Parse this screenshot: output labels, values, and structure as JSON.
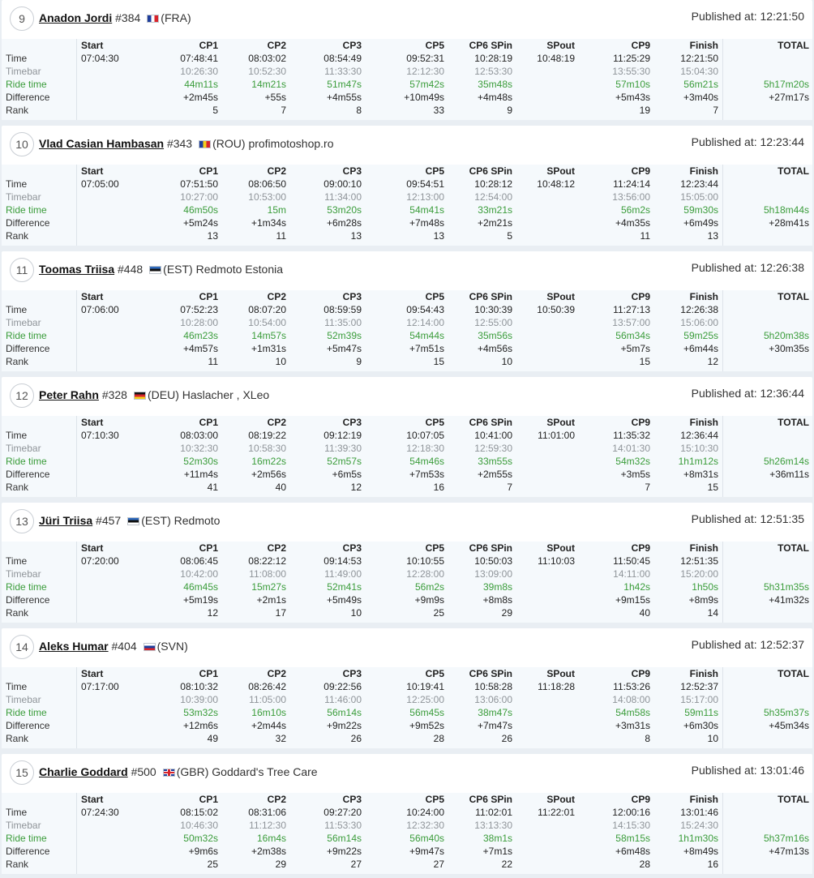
{
  "labels": {
    "published_prefix": "Published at: ",
    "row_time": "Time",
    "row_timebar": "Timebar",
    "row_ride": "Ride time",
    "row_diff": "Difference",
    "row_rank": "Rank"
  },
  "columns": [
    "Start",
    "CP1",
    "CP2",
    "CP3",
    "CP5",
    "CP6 SPin",
    "SPout",
    "CP9",
    "Finish",
    "TOTAL"
  ],
  "colors": {
    "ride_time": "#3a9c3a",
    "timebar": "#8f9499",
    "table_bg": "#f5f9fc",
    "page_bg": "#e9eef3"
  },
  "riders": [
    {
      "position": "9",
      "name": "Anadon Jordi",
      "number": "#384",
      "flag_icon": "flag-fra-icon",
      "flag": [
        "#1f3e9c",
        "#ffffff",
        "#d8242b"
      ],
      "flag_dir": "v",
      "country": "(FRA)",
      "team": "",
      "published": "12:21:50",
      "rows": {
        "time": [
          "07:04:30",
          "07:48:41",
          "08:03:02",
          "08:54:49",
          "09:52:31",
          "10:28:19",
          "10:48:19",
          "11:25:29",
          "12:21:50",
          ""
        ],
        "timebar": [
          "",
          "10:26:30",
          "10:52:30",
          "11:33:30",
          "12:12:30",
          "12:53:30",
          "",
          "13:55:30",
          "15:04:30",
          ""
        ],
        "ride": [
          "",
          "44m11s",
          "14m21s",
          "51m47s",
          "57m42s",
          "35m48s",
          "",
          "57m10s",
          "56m21s",
          "5h17m20s"
        ],
        "diff": [
          "",
          "+2m45s",
          "+55s",
          "+4m55s",
          "+10m49s",
          "+4m48s",
          "",
          "+5m43s",
          "+3m40s",
          "+27m17s"
        ],
        "rank": [
          "",
          "5",
          "7",
          "8",
          "33",
          "9",
          "",
          "19",
          "7",
          ""
        ]
      }
    },
    {
      "position": "10",
      "name": "Vlad Casian Hambasan",
      "number": "#343",
      "flag_icon": "flag-rou-icon",
      "flag": [
        "#1f3e9c",
        "#f4cf1c",
        "#d8242b"
      ],
      "flag_dir": "v",
      "country": "(ROU)",
      "team": "profimotoshop.ro",
      "published": "12:23:44",
      "rows": {
        "time": [
          "07:05:00",
          "07:51:50",
          "08:06:50",
          "09:00:10",
          "09:54:51",
          "10:28:12",
          "10:48:12",
          "11:24:14",
          "12:23:44",
          ""
        ],
        "timebar": [
          "",
          "10:27:00",
          "10:53:00",
          "11:34:00",
          "12:13:00",
          "12:54:00",
          "",
          "13:56:00",
          "15:05:00",
          ""
        ],
        "ride": [
          "",
          "46m50s",
          "15m",
          "53m20s",
          "54m41s",
          "33m21s",
          "",
          "56m2s",
          "59m30s",
          "5h18m44s"
        ],
        "diff": [
          "",
          "+5m24s",
          "+1m34s",
          "+6m28s",
          "+7m48s",
          "+2m21s",
          "",
          "+4m35s",
          "+6m49s",
          "+28m41s"
        ],
        "rank": [
          "",
          "13",
          "11",
          "13",
          "13",
          "5",
          "",
          "11",
          "13",
          ""
        ]
      }
    },
    {
      "position": "11",
      "name": "Toomas Triisa",
      "number": "#448",
      "flag_icon": "flag-est-icon",
      "flag": [
        "#2f6bbf",
        "#111111",
        "#ffffff"
      ],
      "flag_dir": "h",
      "country": "(EST)",
      "team": "Redmoto Estonia",
      "published": "12:26:38",
      "rows": {
        "time": [
          "07:06:00",
          "07:52:23",
          "08:07:20",
          "08:59:59",
          "09:54:43",
          "10:30:39",
          "10:50:39",
          "11:27:13",
          "12:26:38",
          ""
        ],
        "timebar": [
          "",
          "10:28:00",
          "10:54:00",
          "11:35:00",
          "12:14:00",
          "12:55:00",
          "",
          "13:57:00",
          "15:06:00",
          ""
        ],
        "ride": [
          "",
          "46m23s",
          "14m57s",
          "52m39s",
          "54m44s",
          "35m56s",
          "",
          "56m34s",
          "59m25s",
          "5h20m38s"
        ],
        "diff": [
          "",
          "+4m57s",
          "+1m31s",
          "+5m47s",
          "+7m51s",
          "+4m56s",
          "",
          "+5m7s",
          "+6m44s",
          "+30m35s"
        ],
        "rank": [
          "",
          "11",
          "10",
          "9",
          "15",
          "10",
          "",
          "15",
          "12",
          ""
        ]
      }
    },
    {
      "position": "12",
      "name": "Peter Rahn",
      "number": "#328",
      "flag_icon": "flag-deu-icon",
      "flag": [
        "#111111",
        "#d8242b",
        "#f4cf1c"
      ],
      "flag_dir": "h",
      "country": "(DEU)",
      "team": "Haslacher , XLeo",
      "published": "12:36:44",
      "rows": {
        "time": [
          "07:10:30",
          "08:03:00",
          "08:19:22",
          "09:12:19",
          "10:07:05",
          "10:41:00",
          "11:01:00",
          "11:35:32",
          "12:36:44",
          ""
        ],
        "timebar": [
          "",
          "10:32:30",
          "10:58:30",
          "11:39:30",
          "12:18:30",
          "12:59:30",
          "",
          "14:01:30",
          "15:10:30",
          ""
        ],
        "ride": [
          "",
          "52m30s",
          "16m22s",
          "52m57s",
          "54m46s",
          "33m55s",
          "",
          "54m32s",
          "1h1m12s",
          "5h26m14s"
        ],
        "diff": [
          "",
          "+11m4s",
          "+2m56s",
          "+6m5s",
          "+7m53s",
          "+2m55s",
          "",
          "+3m5s",
          "+8m31s",
          "+36m11s"
        ],
        "rank": [
          "",
          "41",
          "40",
          "12",
          "16",
          "7",
          "",
          "7",
          "15",
          ""
        ]
      }
    },
    {
      "position": "13",
      "name": "Jüri Triisa",
      "number": "#457",
      "flag_icon": "flag-est-icon",
      "flag": [
        "#2f6bbf",
        "#111111",
        "#ffffff"
      ],
      "flag_dir": "h",
      "country": "(EST)",
      "team": "Redmoto",
      "published": "12:51:35",
      "rows": {
        "time": [
          "07:20:00",
          "08:06:45",
          "08:22:12",
          "09:14:53",
          "10:10:55",
          "10:50:03",
          "11:10:03",
          "11:50:45",
          "12:51:35",
          ""
        ],
        "timebar": [
          "",
          "10:42:00",
          "11:08:00",
          "11:49:00",
          "12:28:00",
          "13:09:00",
          "",
          "14:11:00",
          "15:20:00",
          ""
        ],
        "ride": [
          "",
          "46m45s",
          "15m27s",
          "52m41s",
          "56m2s",
          "39m8s",
          "",
          "1h42s",
          "1h50s",
          "5h31m35s"
        ],
        "diff": [
          "",
          "+5m19s",
          "+2m1s",
          "+5m49s",
          "+9m9s",
          "+8m8s",
          "",
          "+9m15s",
          "+8m9s",
          "+41m32s"
        ],
        "rank": [
          "",
          "12",
          "17",
          "10",
          "25",
          "29",
          "",
          "40",
          "14",
          ""
        ]
      }
    },
    {
      "position": "14",
      "name": "Aleks Humar",
      "number": "#404",
      "flag_icon": "flag-svn-icon",
      "flag": [
        "#ffffff",
        "#1f3e9c",
        "#d8242b"
      ],
      "flag_dir": "h",
      "country": "(SVN)",
      "team": "",
      "published": "12:52:37",
      "rows": {
        "time": [
          "07:17:00",
          "08:10:32",
          "08:26:42",
          "09:22:56",
          "10:19:41",
          "10:58:28",
          "11:18:28",
          "11:53:26",
          "12:52:37",
          ""
        ],
        "timebar": [
          "",
          "10:39:00",
          "11:05:00",
          "11:46:00",
          "12:25:00",
          "13:06:00",
          "",
          "14:08:00",
          "15:17:00",
          ""
        ],
        "ride": [
          "",
          "53m32s",
          "16m10s",
          "56m14s",
          "56m45s",
          "38m47s",
          "",
          "54m58s",
          "59m11s",
          "5h35m37s"
        ],
        "diff": [
          "",
          "+12m6s",
          "+2m44s",
          "+9m22s",
          "+9m52s",
          "+7m47s",
          "",
          "+3m31s",
          "+6m30s",
          "+45m34s"
        ],
        "rank": [
          "",
          "49",
          "32",
          "26",
          "28",
          "26",
          "",
          "8",
          "10",
          ""
        ]
      }
    },
    {
      "position": "15",
      "name": "Charlie Goddard",
      "number": "#500",
      "flag_icon": "flag-gbr-icon",
      "flag": [
        "#1f3e9c",
        "#ffffff",
        "#d8242b"
      ],
      "flag_dir": "uk",
      "country": "(GBR)",
      "team": "Goddard's Tree Care",
      "published": "13:01:46",
      "rows": {
        "time": [
          "07:24:30",
          "08:15:02",
          "08:31:06",
          "09:27:20",
          "10:24:00",
          "11:02:01",
          "11:22:01",
          "12:00:16",
          "13:01:46",
          ""
        ],
        "timebar": [
          "",
          "10:46:30",
          "11:12:30",
          "11:53:30",
          "12:32:30",
          "13:13:30",
          "",
          "14:15:30",
          "15:24:30",
          ""
        ],
        "ride": [
          "",
          "50m32s",
          "16m4s",
          "56m14s",
          "56m40s",
          "38m1s",
          "",
          "58m15s",
          "1h1m30s",
          "5h37m16s"
        ],
        "diff": [
          "",
          "+9m6s",
          "+2m38s",
          "+9m22s",
          "+9m47s",
          "+7m1s",
          "",
          "+6m48s",
          "+8m49s",
          "+47m13s"
        ],
        "rank": [
          "",
          "25",
          "29",
          "27",
          "27",
          "22",
          "",
          "28",
          "16",
          ""
        ]
      }
    }
  ]
}
